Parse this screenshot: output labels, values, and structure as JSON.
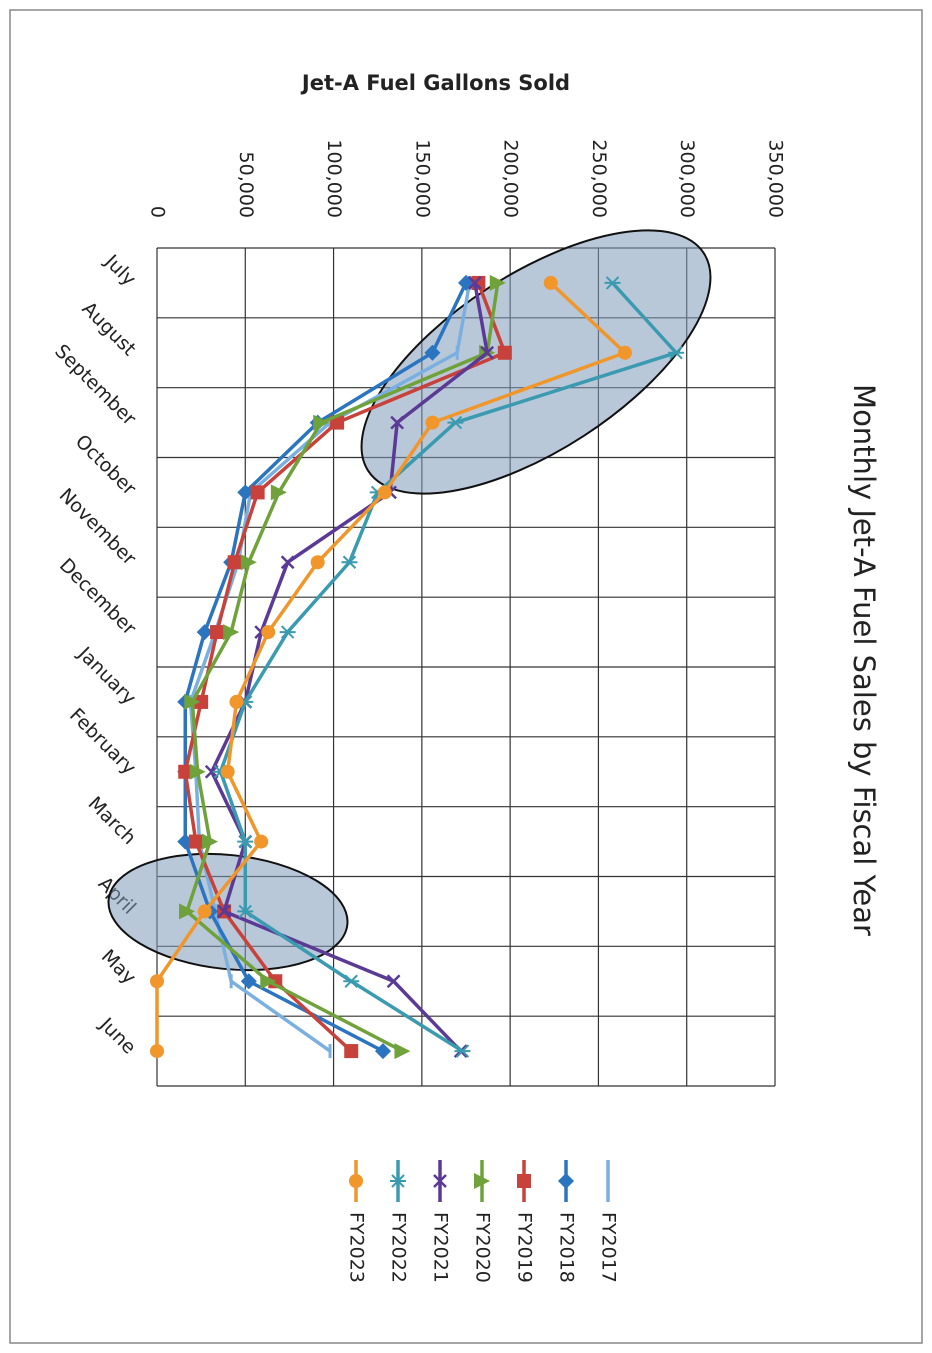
{
  "chart_data": {
    "type": "line",
    "title": "Monthly Jet-A Fuel Sales by Fiscal Year",
    "y_label": "Jet-A Fuel Gallons Sold",
    "categories": [
      "July",
      "August",
      "September",
      "October",
      "November",
      "December",
      "January",
      "February",
      "March",
      "April",
      "May",
      "June"
    ],
    "ylim": [
      0,
      350000
    ],
    "yticks": [
      0,
      {
        "value": 50000,
        "label": "50,000"
      },
      {
        "value": 100000,
        "label": "100,000"
      },
      {
        "value": 150000,
        "label": "150,000"
      },
      {
        "value": 200000,
        "label": "200,000"
      },
      {
        "value": 250000,
        "label": "250,000"
      },
      {
        "value": 300000,
        "label": "300,000"
      },
      {
        "value": 350000,
        "label": "350,000"
      }
    ],
    "grid": true,
    "series": [
      {
        "name": "FY2017",
        "color": "#7ab0e0",
        "marker": "dash",
        "values": [
          177000,
          170000,
          98000,
          53000,
          46000,
          33000,
          19000,
          22000,
          24000,
          33000,
          42000,
          98000
        ]
      },
      {
        "name": "FY2018",
        "color": "#2a74c0",
        "marker": "diamond",
        "values": [
          175000,
          156000,
          91000,
          50000,
          42000,
          27000,
          16000,
          16000,
          16000,
          30000,
          52000,
          128000
        ]
      },
      {
        "name": "FY2019",
        "color": "#c8413a",
        "marker": "square",
        "values": [
          182000,
          197000,
          102000,
          57000,
          44000,
          34000,
          25000,
          16000,
          22000,
          38000,
          67000,
          110000
        ]
      },
      {
        "name": "FY2020",
        "color": "#6fa23a",
        "marker": "triangle",
        "values": [
          193000,
          187000,
          93000,
          69000,
          52000,
          42000,
          20000,
          23000,
          30000,
          17000,
          63000,
          139000
        ]
      },
      {
        "name": "FY2021",
        "color": "#5b3a96",
        "marker": "x",
        "values": [
          180000,
          187000,
          136000,
          132000,
          74000,
          59000,
          50000,
          31000,
          50000,
          38000,
          134000,
          172000
        ]
      },
      {
        "name": "FY2022",
        "color": "#3a9ab0",
        "marker": "star",
        "values": [
          258000,
          294000,
          169000,
          125000,
          109000,
          74000,
          50000,
          36000,
          50000,
          50000,
          110000,
          173000
        ]
      },
      {
        "name": "FY2023",
        "color": "#f0962a",
        "marker": "circle",
        "values": [
          223000,
          265000,
          156000,
          129000,
          91000,
          63000,
          45000,
          40000,
          59000,
          27000,
          0,
          0
        ]
      }
    ]
  }
}
